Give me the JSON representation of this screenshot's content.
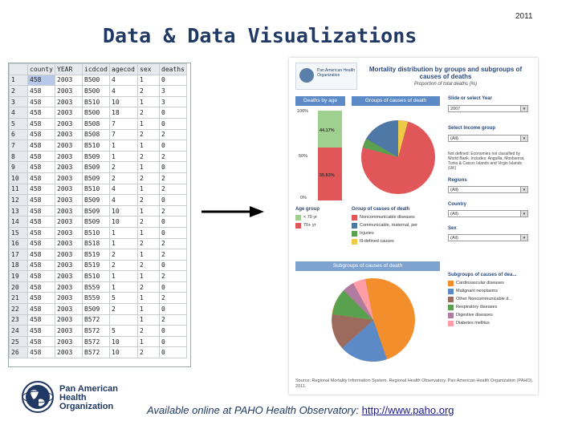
{
  "year": "2011",
  "title": "Data & Data Visualizations",
  "spreadsheet": {
    "headers": [
      "county",
      "YEAR",
      "icdcod",
      "agecod",
      "sex",
      "deaths"
    ],
    "rows": [
      [
        "1",
        "458",
        "2003",
        "B500",
        "4",
        "1",
        "0"
      ],
      [
        "2",
        "458",
        "2003",
        "B500",
        "4",
        "2",
        "3"
      ],
      [
        "3",
        "458",
        "2003",
        "B510",
        "10",
        "1",
        "3"
      ],
      [
        "4",
        "458",
        "2003",
        "B500",
        "18",
        "2",
        "0"
      ],
      [
        "5",
        "458",
        "2003",
        "B508",
        "7",
        "1",
        "0"
      ],
      [
        "6",
        "458",
        "2003",
        "B508",
        "7",
        "2",
        "2"
      ],
      [
        "7",
        "458",
        "2003",
        "B510",
        "1",
        "1",
        "0"
      ],
      [
        "8",
        "458",
        "2003",
        "B509",
        "1",
        "2",
        "2"
      ],
      [
        "9",
        "458",
        "2003",
        "B509",
        "2",
        "1",
        "0"
      ],
      [
        "10",
        "458",
        "2003",
        "B509",
        "2",
        "2",
        "2"
      ],
      [
        "11",
        "458",
        "2003",
        "B510",
        "4",
        "1",
        "2"
      ],
      [
        "12",
        "458",
        "2003",
        "B509",
        "4",
        "2",
        "0"
      ],
      [
        "13",
        "458",
        "2003",
        "B509",
        "10",
        "1",
        "2"
      ],
      [
        "14",
        "458",
        "2003",
        "B509",
        "10",
        "2",
        "0"
      ],
      [
        "15",
        "458",
        "2003",
        "B510",
        "1",
        "1",
        "0"
      ],
      [
        "16",
        "458",
        "2003",
        "B518",
        "1",
        "2",
        "2"
      ],
      [
        "17",
        "458",
        "2003",
        "B519",
        "2",
        "1",
        "2"
      ],
      [
        "18",
        "458",
        "2003",
        "B519",
        "2",
        "2",
        "0"
      ],
      [
        "19",
        "458",
        "2003",
        "B510",
        "1",
        "1",
        "2"
      ],
      [
        "20",
        "458",
        "2003",
        "B559",
        "1",
        "2",
        "0"
      ],
      [
        "21",
        "458",
        "2003",
        "B559",
        "5",
        "1",
        "2"
      ],
      [
        "22",
        "458",
        "2003",
        "B509",
        "2",
        "1",
        "0"
      ],
      [
        "23",
        "458",
        "2003",
        "B572",
        "",
        "1",
        "2"
      ],
      [
        "24",
        "458",
        "2003",
        "B572",
        "5",
        "2",
        "0"
      ],
      [
        "25",
        "458",
        "2003",
        "B572",
        "10",
        "1",
        "0"
      ],
      [
        "26",
        "458",
        "2003",
        "B572",
        "10",
        "2",
        "0"
      ]
    ]
  },
  "dashboard": {
    "logo_text": "Pan American Health Organization",
    "title": "Mortality distribution by groups and subgroups of causes of deaths",
    "subtitle": "Proportion of total deaths (%)",
    "tab_left": "Deaths by age",
    "tab_right": "Groups of causes of death",
    "pct_100": "100%",
    "pct_50": "50%",
    "pct_0": "0%",
    "bar_upper_label": "44.17%",
    "bar_lower_label": "55.83%",
    "filters": [
      {
        "label": "Slide or select Year",
        "value": "2007"
      },
      {
        "label": "Select Income group",
        "value": "(All)"
      },
      {
        "label": "Regions",
        "value": "(All)"
      },
      {
        "label": "Country",
        "value": "(All)"
      },
      {
        "label": "Sex",
        "value": "(All)"
      }
    ],
    "note": "Not defined: Economies not classified by World Bank. Includes: Anguilla, Montserrat, Turks & Caicos Islands and Virgin Islands (UK)",
    "age_group_head": "Age group",
    "age_groups": [
      {
        "label": "< 70 yr",
        "color": "#9fd08f"
      },
      {
        "label": "70+ yr",
        "color": "#e15759"
      }
    ],
    "group_head": "Group of causes of death",
    "groups": [
      {
        "label": "Noncommunicable diseases",
        "color": "#e15759"
      },
      {
        "label": "Communicable, maternal, per",
        "color": "#4e79a7"
      },
      {
        "label": "Injuries",
        "color": "#59a14f"
      },
      {
        "label": "Ill-defined causes",
        "color": "#edc948"
      }
    ],
    "subgroup_panel_title": "Subgroups of causes of death",
    "subgroup_head": "Subgroups of causes of dea...",
    "subgroups": [
      {
        "label": "Cardiovascular diseases",
        "color": "#f28e2b"
      },
      {
        "label": "Malignant neoplasms",
        "color": "#5b8ac6"
      },
      {
        "label": "Other Noncommunicable d...",
        "color": "#9c6b5e"
      },
      {
        "label": "Respiratory diseases",
        "color": "#59a14f"
      },
      {
        "label": "Digestive diseases",
        "color": "#b07aa1"
      },
      {
        "label": "Diabetes mellitus",
        "color": "#ff9da7"
      }
    ],
    "source": "Source: Regional Mortality Information System. Regional Health Observatory. Pan American Health Organization (PAHO). 2011."
  },
  "footer": {
    "org_line1": "Pan American",
    "org_line2": "Health",
    "org_line3": "Organization",
    "available_text": "Available online at PAHO Health Observatory: ",
    "link_text": "http://www.paho.org"
  }
}
